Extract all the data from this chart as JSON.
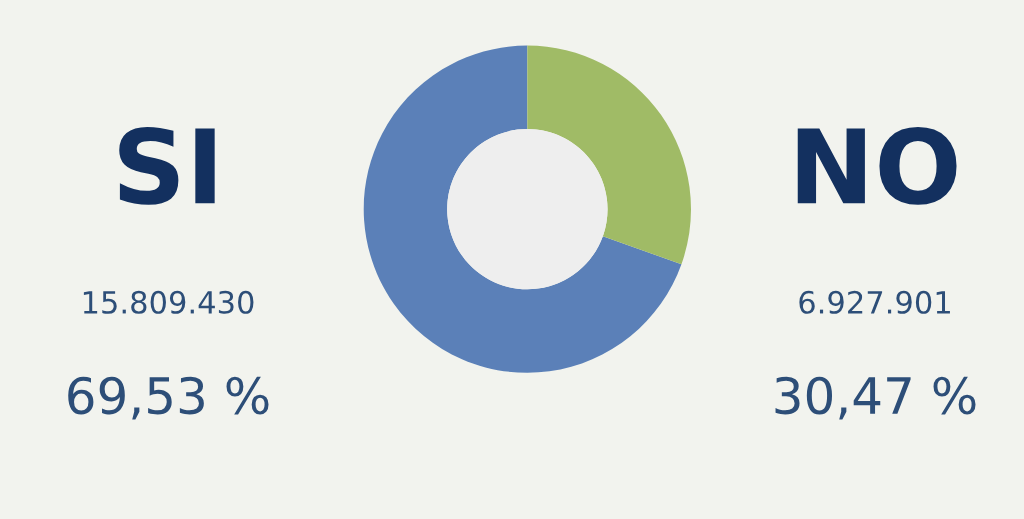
{
  "chart_data": {
    "type": "donut",
    "categories": [
      "SI",
      "NO"
    ],
    "values": [
      15809430,
      6927901
    ],
    "colors": [
      "#5b80b8",
      "#a0bb66"
    ],
    "value_labels": [
      "15.809.430",
      "6.927.901"
    ],
    "annotations": [
      "69,53 %",
      "30,47 %"
    ]
  }
}
